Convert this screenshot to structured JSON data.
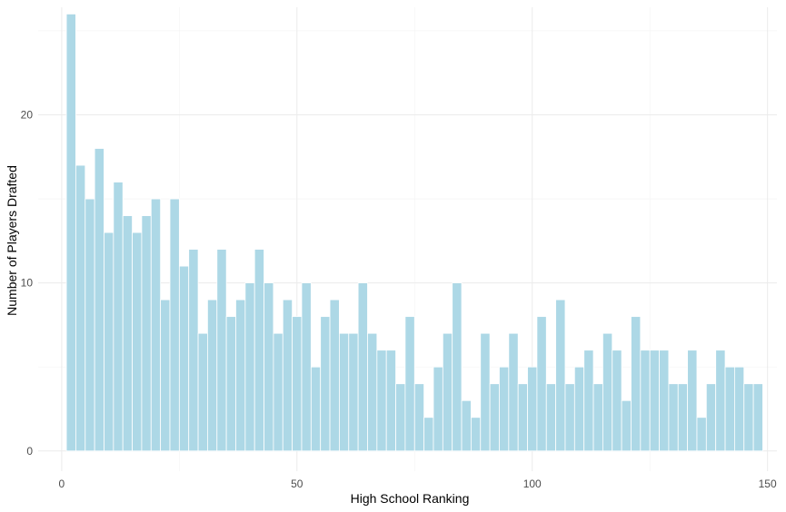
{
  "chart_data": {
    "type": "bar",
    "xlabel": "High School Ranking",
    "ylabel": "Number of Players Drafted",
    "xlim": [
      -5,
      152
    ],
    "ylim": [
      -1.2,
      26.4
    ],
    "xticks": [
      0,
      50,
      100,
      150
    ],
    "yticks": [
      0,
      10,
      20
    ],
    "x_minor": [
      25,
      75,
      125
    ],
    "y_minor": [
      5,
      15,
      25
    ],
    "bin_width": 2,
    "bar_color": "#add8e6",
    "grid": true,
    "x": [
      2,
      4,
      6,
      8,
      10,
      12,
      14,
      16,
      18,
      20,
      22,
      24,
      26,
      28,
      30,
      32,
      34,
      36,
      38,
      40,
      42,
      44,
      46,
      48,
      50,
      52,
      54,
      56,
      58,
      60,
      62,
      64,
      66,
      68,
      70,
      72,
      74,
      76,
      78,
      80,
      82,
      84,
      86,
      88,
      90,
      92,
      94,
      96,
      98,
      100,
      102,
      104,
      106,
      108,
      110,
      112,
      114,
      116,
      118,
      120,
      122,
      124,
      126,
      128,
      130,
      132,
      134,
      136,
      138,
      140,
      142,
      144,
      146,
      148
    ],
    "values": [
      26,
      17,
      15,
      18,
      13,
      16,
      14,
      13,
      14,
      15,
      9,
      15,
      11,
      12,
      7,
      9,
      12,
      8,
      9,
      10,
      12,
      10,
      7,
      9,
      8,
      10,
      5,
      8,
      9,
      7,
      7,
      10,
      7,
      6,
      6,
      4,
      8,
      4,
      2,
      5,
      7,
      10,
      3,
      2,
      7,
      4,
      5,
      7,
      4,
      5,
      8,
      4,
      9,
      4,
      5,
      6,
      4,
      7,
      6,
      3,
      8,
      6,
      6,
      6,
      4,
      4,
      6,
      2,
      4,
      6,
      5,
      5,
      4,
      4
    ]
  }
}
